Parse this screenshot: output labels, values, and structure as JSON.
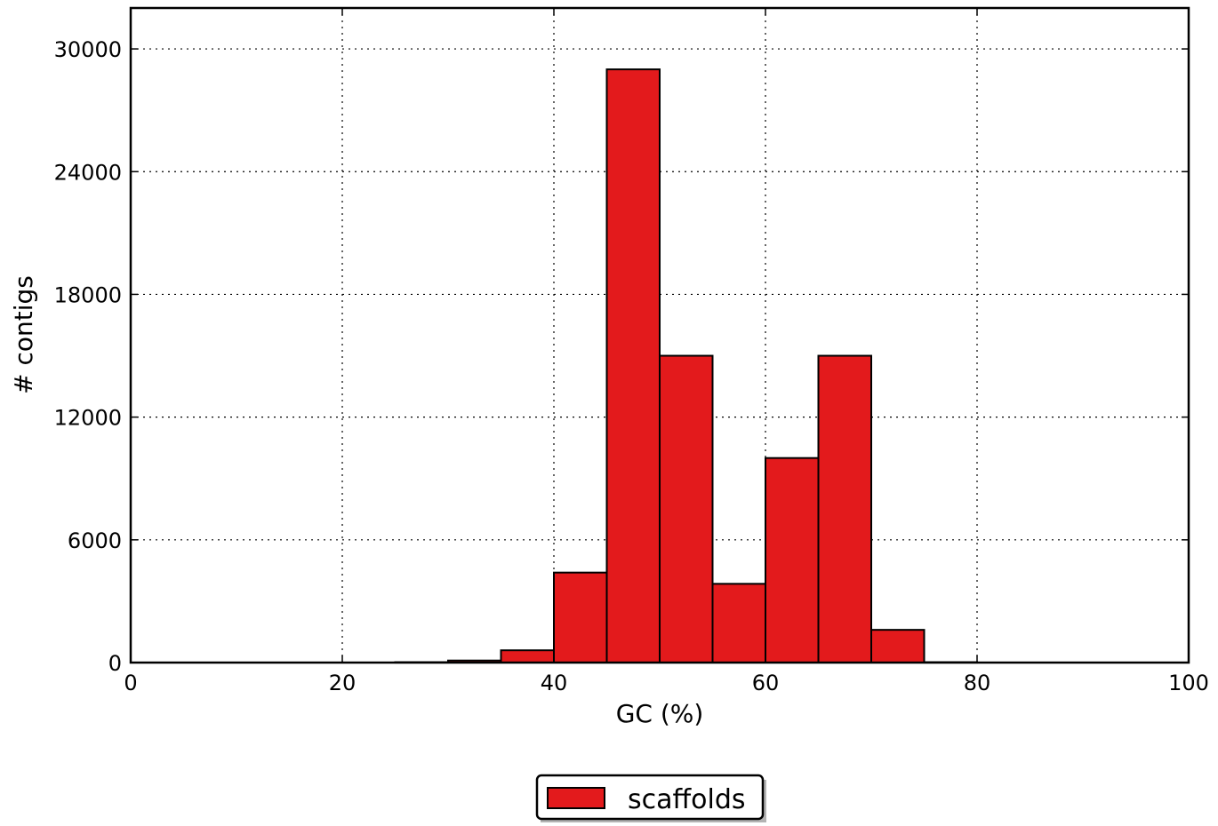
{
  "chart_data": {
    "type": "bar",
    "xlabel": "GC (%)",
    "ylabel": "# contigs",
    "xlim": [
      0,
      100
    ],
    "ylim": [
      0,
      32000
    ],
    "xticks": [
      0,
      20,
      40,
      60,
      80,
      100
    ],
    "yticks": [
      0,
      6000,
      12000,
      18000,
      24000,
      30000
    ],
    "grid": true,
    "legend_position": "bottom-center",
    "bin_width": 5,
    "bins": [
      {
        "x0": 25,
        "x1": 30,
        "value": 20
      },
      {
        "x0": 30,
        "x1": 35,
        "value": 100
      },
      {
        "x0": 35,
        "x1": 40,
        "value": 600
      },
      {
        "x0": 40,
        "x1": 45,
        "value": 4400
      },
      {
        "x0": 45,
        "x1": 50,
        "value": 29000
      },
      {
        "x0": 50,
        "x1": 55,
        "value": 15000
      },
      {
        "x0": 55,
        "x1": 60,
        "value": 3850
      },
      {
        "x0": 60,
        "x1": 65,
        "value": 10000
      },
      {
        "x0": 65,
        "x1": 70,
        "value": 15000
      },
      {
        "x0": 70,
        "x1": 75,
        "value": 1600
      },
      {
        "x0": 75,
        "x1": 80,
        "value": 20
      }
    ],
    "series": [
      {
        "name": "scaffolds",
        "color": "#e31a1c"
      }
    ]
  }
}
